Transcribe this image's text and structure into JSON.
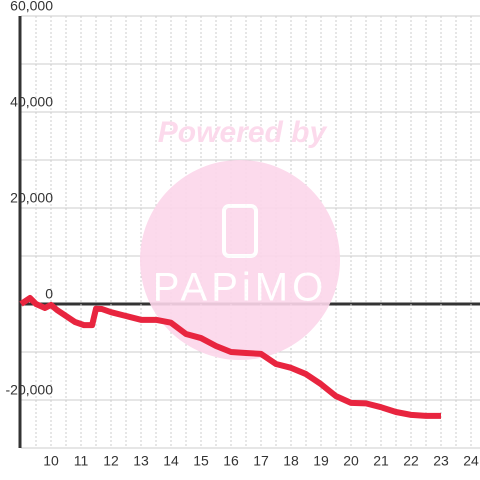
{
  "chart_data": {
    "type": "line",
    "watermark": "Powered by",
    "watermark_logo": "PAPiMO",
    "x": [
      9.0,
      9.3,
      9.5,
      9.8,
      10.0,
      10.2,
      10.5,
      10.8,
      11.1,
      11.37,
      11.5,
      11.7,
      12.0,
      12.5,
      13.0,
      13.5,
      14.0,
      14.5,
      15.0,
      15.5,
      16.0,
      16.5,
      17.0,
      17.5,
      18.0,
      18.5,
      19.0,
      19.5,
      20.0,
      20.5,
      21.0,
      21.5,
      22.0,
      22.5,
      23.0
    ],
    "series": [
      {
        "color": "#e8253f",
        "values": [
          0,
          1250,
          0,
          -830,
          -200,
          -1250,
          -2500,
          -3750,
          -4400,
          -4400,
          -1000,
          -1050,
          -1700,
          -2500,
          -3300,
          -3300,
          -3900,
          -6250,
          -7100,
          -8750,
          -10000,
          -10200,
          -10400,
          -12500,
          -13300,
          -14600,
          -16700,
          -19200,
          -20600,
          -20700,
          -21500,
          -22500,
          -23100,
          -23300,
          -23300
        ]
      }
    ],
    "xlim": [
      9,
      24.3
    ],
    "xticks": [
      10,
      11,
      12,
      13,
      14,
      15,
      16,
      17,
      18,
      19,
      20,
      21,
      22,
      23,
      24
    ],
    "xminor": [
      9.5,
      10.5,
      11.5,
      12.5,
      13.5,
      14.5,
      15.5,
      16.5,
      17.5,
      18.5,
      19.5,
      20.5,
      21.5,
      22.5,
      23.5
    ],
    "ylim": [
      -30000,
      60000
    ],
    "yticks": [
      {
        "value": -20000,
        "label": "-20,000"
      },
      0,
      {
        "value": 20000,
        "label": "20,000"
      },
      {
        "value": 40000,
        "label": "40,000"
      },
      {
        "value": 60000,
        "label": "60,000"
      }
    ],
    "yminor": [
      -30000,
      -10000,
      10000,
      30000,
      50000
    ],
    "grid": true
  }
}
